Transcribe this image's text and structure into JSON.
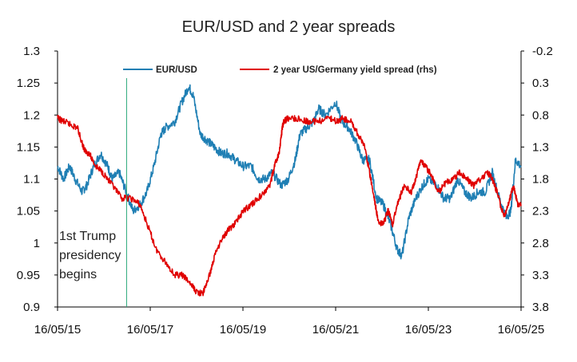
{
  "chart_data": {
    "type": "line",
    "title": "EUR/USD and 2 year spreads",
    "xlabel": "",
    "ylabel": "",
    "x_ticks": [
      "16/05/15",
      "16/05/17",
      "16/05/19",
      "16/05/21",
      "16/05/23",
      "16/05/25"
    ],
    "x_range": [
      2015.37,
      2025.37
    ],
    "y_left": {
      "ticks": [
        "1.3",
        "1.25",
        "1.2",
        "1.15",
        "1.1",
        "1.05",
        "1",
        "0.95",
        "0.9"
      ],
      "range": [
        0.9,
        1.3
      ]
    },
    "y_right": {
      "ticks": [
        "-0.2",
        "0.3",
        "0.8",
        "1.3",
        "1.8",
        "2.3",
        "2.8",
        "3.3",
        "3.8"
      ],
      "range": [
        -0.2,
        3.8
      ],
      "inverted": true
    },
    "legend_position": "top",
    "grid": false,
    "series": [
      {
        "name": "EUR/USD",
        "axis": "left",
        "color": "#1f7fb4",
        "x": [
          2015.37,
          2015.5,
          2015.63,
          2015.75,
          2015.9,
          2016.0,
          2016.15,
          2016.3,
          2016.45,
          2016.55,
          2016.7,
          2016.85,
          2017.0,
          2017.15,
          2017.3,
          2017.45,
          2017.6,
          2017.7,
          2017.9,
          2018.05,
          2018.2,
          2018.3,
          2018.45,
          2018.6,
          2018.75,
          2018.9,
          2019.05,
          2019.2,
          2019.37,
          2019.55,
          2019.7,
          2019.85,
          2020.0,
          2020.2,
          2020.35,
          2020.5,
          2020.6,
          2020.75,
          2020.9,
          2021.0,
          2021.15,
          2021.37,
          2021.5,
          2021.65,
          2021.8,
          2021.95,
          2022.1,
          2022.25,
          2022.4,
          2022.55,
          2022.7,
          2022.8,
          2022.95,
          2023.1,
          2023.25,
          2023.37,
          2023.55,
          2023.7,
          2023.85,
          2024.0,
          2024.15,
          2024.3,
          2024.45,
          2024.6,
          2024.75,
          2024.9,
          2025.05,
          2025.15,
          2025.25,
          2025.37
        ],
        "y": [
          1.12,
          1.1,
          1.12,
          1.1,
          1.08,
          1.09,
          1.12,
          1.14,
          1.12,
          1.1,
          1.11,
          1.08,
          1.05,
          1.06,
          1.08,
          1.12,
          1.17,
          1.18,
          1.19,
          1.22,
          1.245,
          1.23,
          1.17,
          1.16,
          1.15,
          1.14,
          1.14,
          1.13,
          1.12,
          1.12,
          1.1,
          1.1,
          1.11,
          1.09,
          1.1,
          1.13,
          1.17,
          1.18,
          1.19,
          1.21,
          1.2,
          1.22,
          1.19,
          1.18,
          1.16,
          1.13,
          1.13,
          1.07,
          1.06,
          1.03,
          0.99,
          0.98,
          1.04,
          1.07,
          1.09,
          1.1,
          1.09,
          1.07,
          1.07,
          1.1,
          1.08,
          1.07,
          1.08,
          1.08,
          1.11,
          1.07,
          1.04,
          1.05,
          1.13,
          1.12
        ]
      },
      {
        "name": "2 year US/Germany yield spread (rhs)",
        "axis": "right",
        "color": "#e00000",
        "x": [
          2015.37,
          2015.5,
          2015.65,
          2015.8,
          2015.95,
          2016.05,
          2016.2,
          2016.35,
          2016.55,
          2016.75,
          2016.95,
          2017.15,
          2017.35,
          2017.5,
          2017.7,
          2017.9,
          2018.05,
          2018.2,
          2018.35,
          2018.5,
          2018.65,
          2018.8,
          2018.95,
          2019.05,
          2019.2,
          2019.37,
          2019.55,
          2019.7,
          2019.85,
          2019.95,
          2020.05,
          2020.15,
          2020.22,
          2020.25,
          2020.35,
          2020.5,
          2020.75,
          2021.0,
          2021.25,
          2021.4,
          2021.5,
          2021.7,
          2021.85,
          2022.0,
          2022.1,
          2022.2,
          2022.3,
          2022.4,
          2022.5,
          2022.6,
          2022.7,
          2022.85,
          2023.0,
          2023.1,
          2023.2,
          2023.3,
          2023.4,
          2023.6,
          2023.75,
          2023.9,
          2024.05,
          2024.2,
          2024.35,
          2024.5,
          2024.65,
          2024.75,
          2024.85,
          2025.0,
          2025.1,
          2025.2,
          2025.3,
          2025.37
        ],
        "y": [
          0.85,
          0.9,
          0.95,
          1.0,
          1.35,
          1.4,
          1.6,
          1.7,
          1.9,
          2.1,
          2.1,
          2.2,
          2.6,
          2.9,
          3.1,
          3.3,
          3.3,
          3.4,
          3.55,
          3.6,
          3.3,
          2.9,
          2.7,
          2.6,
          2.5,
          2.3,
          2.2,
          2.1,
          2.0,
          1.9,
          1.6,
          1.4,
          1.0,
          0.9,
          0.85,
          0.85,
          0.9,
          0.9,
          0.85,
          0.9,
          0.85,
          0.9,
          1.1,
          1.3,
          1.7,
          2.1,
          2.5,
          2.5,
          2.3,
          2.5,
          2.2,
          1.9,
          2.0,
          1.8,
          1.5,
          1.6,
          1.7,
          2.0,
          1.85,
          1.8,
          1.7,
          1.8,
          1.9,
          1.8,
          1.7,
          1.8,
          2.0,
          2.4,
          2.2,
          1.9,
          2.2,
          2.2
        ]
      }
    ],
    "annotations": [
      {
        "type": "vertical_line",
        "x": 2016.86,
        "color": "#2aa87a"
      },
      {
        "type": "text",
        "lines": [
          "1st Trump",
          "presidency",
          "begins"
        ]
      }
    ]
  }
}
